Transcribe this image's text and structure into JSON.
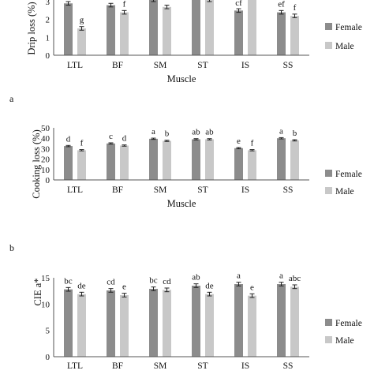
{
  "colors": {
    "female": "#8c8c8c",
    "male": "#c8c8c8",
    "axis": "#555555",
    "errbar": "#222222"
  },
  "chart_data": [
    {
      "type": "bar",
      "panel_label": "a",
      "xlabel": "Muscle",
      "ylabel": "Drip loss (%)",
      "ylim": [
        0,
        3
      ],
      "yticks": [
        "0",
        "1",
        "2",
        "3"
      ],
      "categories": [
        "LTL",
        "BF",
        "SM",
        "ST",
        "IS",
        "SS"
      ],
      "series": [
        {
          "name": "Female",
          "values": [
            2.9,
            2.8,
            3.1,
            3.4,
            2.5,
            2.4
          ],
          "errors": [
            0.1,
            0.1,
            0.1,
            0.1,
            0.1,
            0.1
          ]
        },
        {
          "name": "Male",
          "values": [
            1.5,
            2.4,
            2.7,
            3.1,
            3.3,
            2.2
          ],
          "errors": [
            0.1,
            0.1,
            0.1,
            0.1,
            0.1,
            0.1
          ]
        }
      ],
      "letters": [
        [
          "",
          ""
        ],
        [
          "",
          "f"
        ],
        [
          "",
          ""
        ],
        [
          "",
          ""
        ],
        [
          "cf",
          ""
        ],
        [
          "ef",
          "f"
        ]
      ],
      "male_letter_ltl": "g",
      "legend_position": "right"
    },
    {
      "type": "bar",
      "panel_label": "b",
      "xlabel": "Muscle",
      "ylabel": "Cooking loss (%)",
      "ylim": [
        0,
        50
      ],
      "yticks": [
        "0",
        "10",
        "20",
        "30",
        "40",
        "50"
      ],
      "categories": [
        "LTL",
        "BF",
        "SM",
        "ST",
        "IS",
        "SS"
      ],
      "series": [
        {
          "name": "Female",
          "values": [
            32.5,
            35,
            39.5,
            39,
            30.5,
            40
          ],
          "errors": [
            0.6,
            0.6,
            0.6,
            0.6,
            0.6,
            0.6
          ]
        },
        {
          "name": "Male",
          "values": [
            28.5,
            33,
            37.5,
            39,
            28.5,
            38
          ],
          "errors": [
            0.6,
            0.6,
            0.6,
            0.6,
            0.6,
            0.6
          ]
        }
      ],
      "letters": [
        [
          "d",
          "f"
        ],
        [
          "c",
          "d"
        ],
        [
          "a",
          "b"
        ],
        [
          "ab",
          "ab"
        ],
        [
          "e",
          "f"
        ],
        [
          "a",
          "b"
        ]
      ],
      "legend_position": "right"
    },
    {
      "type": "bar",
      "panel_label": "",
      "xlabel": "",
      "ylabel": "CIE a*",
      "ylim": [
        0,
        15
      ],
      "yticks": [
        "0",
        "5",
        "10",
        "15"
      ],
      "categories": [
        "LTL",
        "BF",
        "SM",
        "ST",
        "IS",
        "SS"
      ],
      "series": [
        {
          "name": "Female",
          "values": [
            12.8,
            12.6,
            12.9,
            13.5,
            13.8,
            13.8
          ],
          "errors": [
            0.35,
            0.35,
            0.35,
            0.35,
            0.35,
            0.35
          ]
        },
        {
          "name": "Male",
          "values": [
            11.9,
            11.7,
            12.7,
            11.9,
            11.6,
            13.3
          ],
          "errors": [
            0.35,
            0.35,
            0.35,
            0.35,
            0.35,
            0.35
          ]
        }
      ],
      "letters": [
        [
          "bc",
          "de"
        ],
        [
          "cd",
          "e"
        ],
        [
          "bc",
          "cd"
        ],
        [
          "ab",
          "de"
        ],
        [
          "a",
          "e"
        ],
        [
          "a",
          "abc"
        ]
      ],
      "legend_position": "right"
    }
  ]
}
